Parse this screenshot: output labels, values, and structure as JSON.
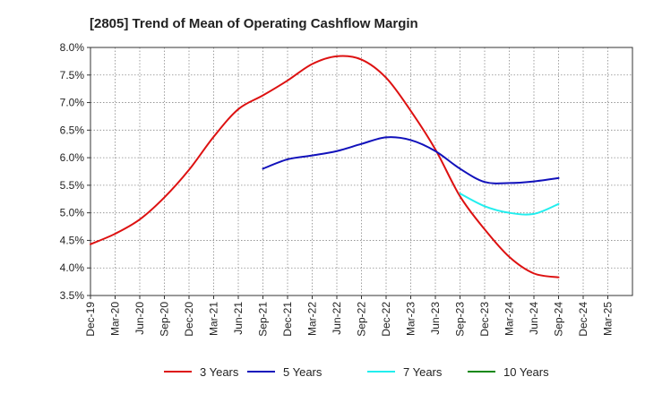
{
  "chart_data": {
    "type": "line",
    "title": "[2805]  Trend of Mean of Operating Cashflow Margin",
    "xlabel": "",
    "ylabel": "",
    "ylim": [
      3.5,
      8.0
    ],
    "y_ticks": [
      3.5,
      4.0,
      4.5,
      5.0,
      5.5,
      6.0,
      6.5,
      7.0,
      7.5,
      8.0
    ],
    "y_tick_labels": [
      "3.5%",
      "4.0%",
      "4.5%",
      "5.0%",
      "5.5%",
      "6.0%",
      "6.5%",
      "7.0%",
      "7.5%",
      "8.0%"
    ],
    "categories": [
      "Dec-19",
      "Mar-20",
      "Jun-20",
      "Sep-20",
      "Dec-20",
      "Mar-21",
      "Jun-21",
      "Sep-21",
      "Dec-21",
      "Mar-22",
      "Jun-22",
      "Sep-22",
      "Dec-22",
      "Mar-23",
      "Jun-23",
      "Sep-23",
      "Dec-23",
      "Mar-24",
      "Jun-24",
      "Sep-24",
      "Dec-24",
      "Mar-25"
    ],
    "grid": true,
    "legend_position": "bottom",
    "series": [
      {
        "name": "3 Years",
        "color": "#dd1111",
        "values": [
          4.43,
          4.62,
          4.88,
          5.28,
          5.78,
          6.38,
          6.88,
          7.13,
          7.4,
          7.7,
          7.84,
          7.78,
          7.45,
          6.85,
          6.15,
          5.3,
          4.7,
          4.2,
          3.9,
          3.83,
          null,
          null
        ]
      },
      {
        "name": "5 Years",
        "color": "#1111bb",
        "values": [
          null,
          null,
          null,
          null,
          null,
          null,
          null,
          5.8,
          5.97,
          6.04,
          6.12,
          6.25,
          6.37,
          6.32,
          6.12,
          5.8,
          5.56,
          5.54,
          5.57,
          5.63,
          null,
          null
        ]
      },
      {
        "name": "7 Years",
        "color": "#22eeee",
        "values": [
          null,
          null,
          null,
          null,
          null,
          null,
          null,
          null,
          null,
          null,
          null,
          null,
          null,
          null,
          null,
          5.35,
          5.12,
          5.0,
          4.98,
          5.16,
          null,
          null
        ]
      },
      {
        "name": "10 Years",
        "color": "#118811",
        "values": [
          null,
          null,
          null,
          null,
          null,
          null,
          null,
          null,
          null,
          null,
          null,
          null,
          null,
          null,
          null,
          null,
          null,
          null,
          null,
          null,
          null,
          null
        ]
      }
    ]
  }
}
